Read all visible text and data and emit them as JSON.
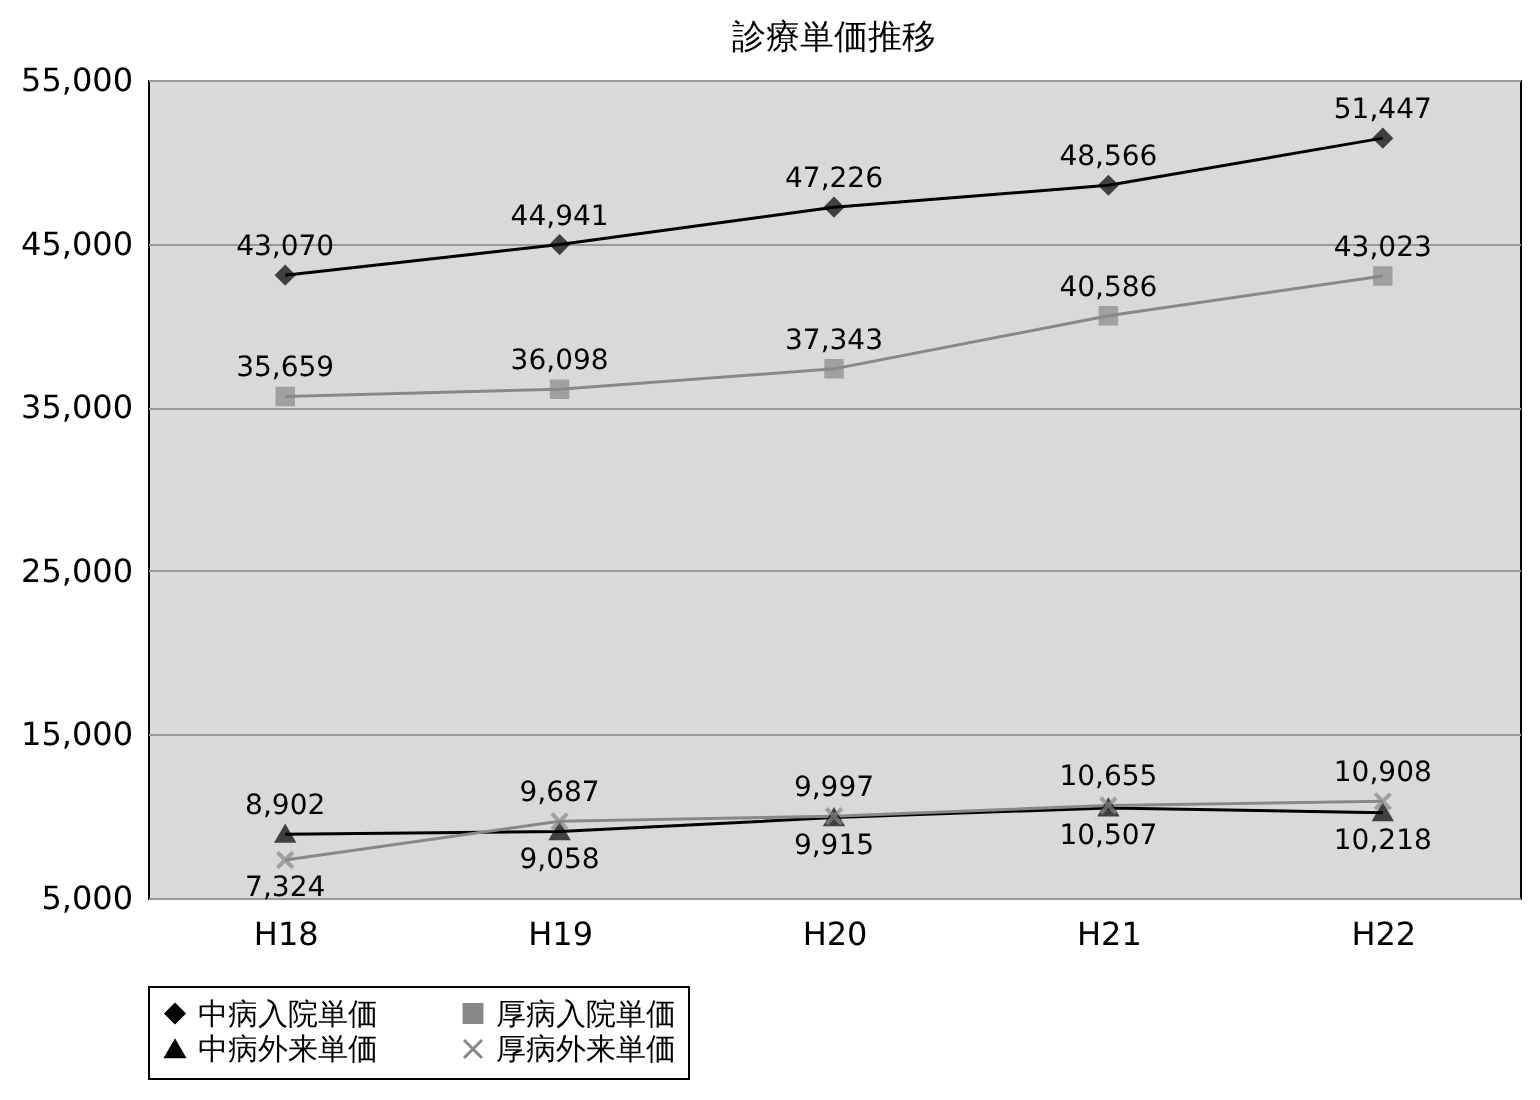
{
  "chart_data": {
    "type": "line",
    "title": "診療単価推移",
    "categories": [
      "H18",
      "H19",
      "H20",
      "H21",
      "H22"
    ],
    "series": [
      {
        "name": "中病入院単価",
        "color": "#000000",
        "marker": "diamond",
        "values": [
          43070,
          44941,
          47226,
          48566,
          51447
        ],
        "value_labels": [
          "43,070",
          "44,941",
          "47,226",
          "48,566",
          "51,447"
        ]
      },
      {
        "name": "厚病入院単価",
        "color": "#888888",
        "marker": "square",
        "values": [
          35659,
          36098,
          37343,
          40586,
          43023
        ],
        "value_labels": [
          "35,659",
          "36,098",
          "37,343",
          "40,586",
          "43,023"
        ]
      },
      {
        "name": "中病外来単価",
        "color": "#000000",
        "marker": "triangle",
        "values": [
          8902,
          9058,
          9915,
          10507,
          10218
        ],
        "value_labels": [
          "8,902",
          "9,058",
          "9,915",
          "10,507",
          "10,218"
        ]
      },
      {
        "name": "厚病外来単価",
        "color": "#888888",
        "marker": "cross",
        "values": [
          7324,
          9687,
          9997,
          10655,
          10908
        ],
        "value_labels": [
          "7,324",
          "9,687",
          "9,997",
          "10,655",
          "10,908"
        ]
      }
    ],
    "ylim": [
      5000,
      55000
    ],
    "yticks": [
      {
        "value": 5000,
        "label": "5,000"
      },
      {
        "value": 15000,
        "label": "15,000"
      },
      {
        "value": 25000,
        "label": "25,000"
      },
      {
        "value": 35000,
        "label": "35,000"
      },
      {
        "value": 45000,
        "label": "45,000"
      },
      {
        "value": 55000,
        "label": "55,000"
      }
    ],
    "grid": "y",
    "legend": "bottom",
    "line_style": "solid"
  }
}
